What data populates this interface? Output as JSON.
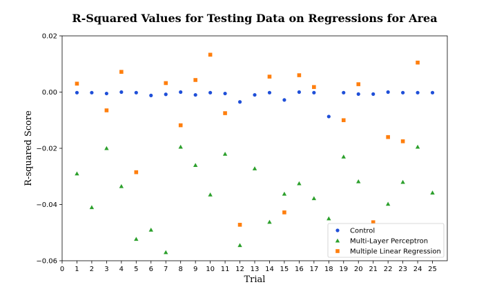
{
  "chart_data": {
    "type": "scatter",
    "title": "R-Squared Values for Testing Data on Regressions for Area",
    "xlabel": "Trial",
    "ylabel": "R-squared Score",
    "xlim": [
      0,
      26
    ],
    "ylim": [
      -0.06,
      0.02
    ],
    "xticks": [
      0,
      1,
      2,
      3,
      4,
      5,
      6,
      7,
      8,
      9,
      10,
      11,
      12,
      13,
      14,
      15,
      16,
      17,
      18,
      19,
      20,
      21,
      22,
      23,
      24,
      25
    ],
    "yticks": [
      -0.06,
      -0.04,
      -0.02,
      0.0,
      0.02
    ],
    "ytick_labels": [
      "−0.06",
      "−0.04",
      "−0.02",
      "0.00",
      "0.02"
    ],
    "grid": false,
    "legend_position": "lower-right",
    "series": [
      {
        "name": "Control",
        "marker": "circle",
        "color": "#1f4fd8",
        "x": [
          1,
          2,
          3,
          4,
          5,
          6,
          7,
          8,
          9,
          10,
          11,
          12,
          13,
          14,
          15,
          16,
          17,
          18,
          19,
          20,
          21,
          22,
          23,
          24,
          25
        ],
        "y": [
          -0.0002,
          -0.0002,
          -0.0005,
          0.0,
          -0.0002,
          -0.0012,
          -0.0008,
          0.0,
          -0.001,
          -0.0002,
          -0.0005,
          -0.0035,
          -0.001,
          -0.0002,
          -0.0028,
          0.0,
          -0.0002,
          -0.0087,
          -0.0002,
          -0.0007,
          -0.0007,
          0.0,
          -0.0002,
          -0.0002,
          -0.0002
        ]
      },
      {
        "name": "Multi-Layer Perceptron",
        "marker": "triangle",
        "color": "#2ca02c",
        "x": [
          1,
          2,
          3,
          4,
          5,
          6,
          7,
          8,
          9,
          10,
          11,
          12,
          13,
          14,
          15,
          16,
          17,
          18,
          19,
          20,
          21,
          22,
          23,
          24,
          25
        ],
        "y": [
          -0.029,
          -0.041,
          -0.02,
          -0.0335,
          -0.0523,
          -0.049,
          -0.057,
          -0.0195,
          -0.026,
          -0.0365,
          -0.022,
          -0.0545,
          -0.0272,
          -0.0462,
          -0.0362,
          -0.0325,
          -0.0378,
          -0.045,
          -0.023,
          -0.0318,
          -0.0465,
          -0.0398,
          -0.032,
          -0.0195,
          -0.0358
        ]
      },
      {
        "name": "Multiple Linear Regression",
        "marker": "square",
        "color": "#ff7f0e",
        "x": [
          1,
          3,
          4,
          5,
          7,
          8,
          9,
          10,
          11,
          12,
          14,
          15,
          16,
          17,
          19,
          20,
          21,
          22,
          23,
          24
        ],
        "y": [
          0.003,
          -0.0065,
          0.0072,
          -0.0285,
          0.0032,
          -0.0118,
          0.0043,
          0.0133,
          -0.0075,
          -0.0472,
          0.0055,
          -0.0428,
          0.006,
          0.0018,
          -0.01,
          0.0028,
          -0.0463,
          -0.016,
          -0.0175,
          0.0105
        ]
      }
    ]
  }
}
